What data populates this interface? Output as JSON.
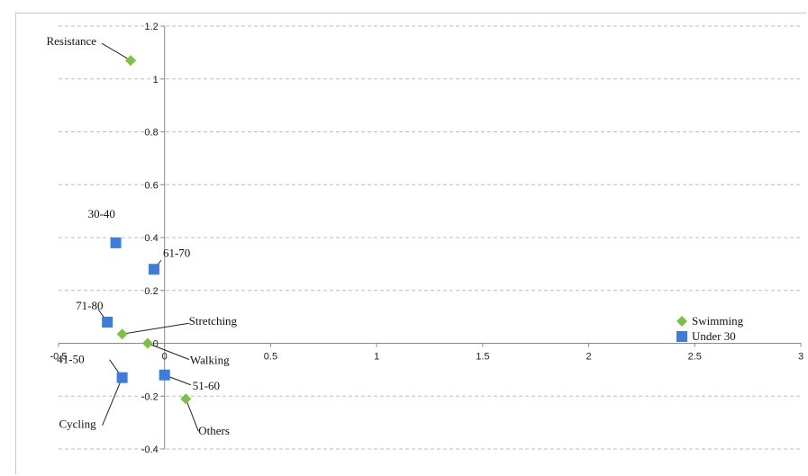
{
  "chart_data": {
    "type": "scatter",
    "xlim": [
      -0.5,
      3
    ],
    "ylim": [
      -0.4,
      1.2
    ],
    "x_ticks": [
      -0.5,
      0,
      0.5,
      1,
      1.5,
      2,
      2.5,
      3
    ],
    "x_tick_labels": [
      "-0.5",
      "0",
      "0.5",
      "1",
      "1.5",
      "2",
      "2.5",
      "3"
    ],
    "y_ticks": [
      -0.4,
      -0.2,
      0,
      0.2,
      0.4,
      0.6,
      0.8,
      1,
      1.2
    ],
    "y_tick_labels": [
      "-0.4",
      "-0.2",
      "0",
      "0.2",
      "0.4",
      "0.6",
      "0.8",
      "1",
      "1.2"
    ],
    "grid": "horizontal-dashed",
    "legend_position": "right",
    "series": [
      {
        "name": "Swimming",
        "marker": "diamond",
        "color": "#7cc142",
        "points": [
          {
            "label": "Resistance",
            "x": -0.16,
            "y": 1.07
          },
          {
            "label": "Stretching",
            "x": -0.2,
            "y": 0.035
          },
          {
            "label": "Walking",
            "x": -0.08,
            "y": 0.0
          },
          {
            "label": "Others",
            "x": 0.1,
            "y": -0.21
          },
          {
            "label": "Cycling",
            "x": -0.2,
            "y": -0.13
          }
        ]
      },
      {
        "name": "Under 30",
        "marker": "square",
        "color": "#3b7ddd",
        "points": [
          {
            "label": "30-40",
            "x": -0.23,
            "y": 0.38
          },
          {
            "label": "61-70",
            "x": -0.05,
            "y": 0.28
          },
          {
            "label": "71-80",
            "x": -0.27,
            "y": 0.08
          },
          {
            "label": "41-50",
            "x": -0.2,
            "y": -0.13
          },
          {
            "label": "51-60",
            "x": 0.0,
            "y": -0.12
          }
        ]
      }
    ]
  }
}
